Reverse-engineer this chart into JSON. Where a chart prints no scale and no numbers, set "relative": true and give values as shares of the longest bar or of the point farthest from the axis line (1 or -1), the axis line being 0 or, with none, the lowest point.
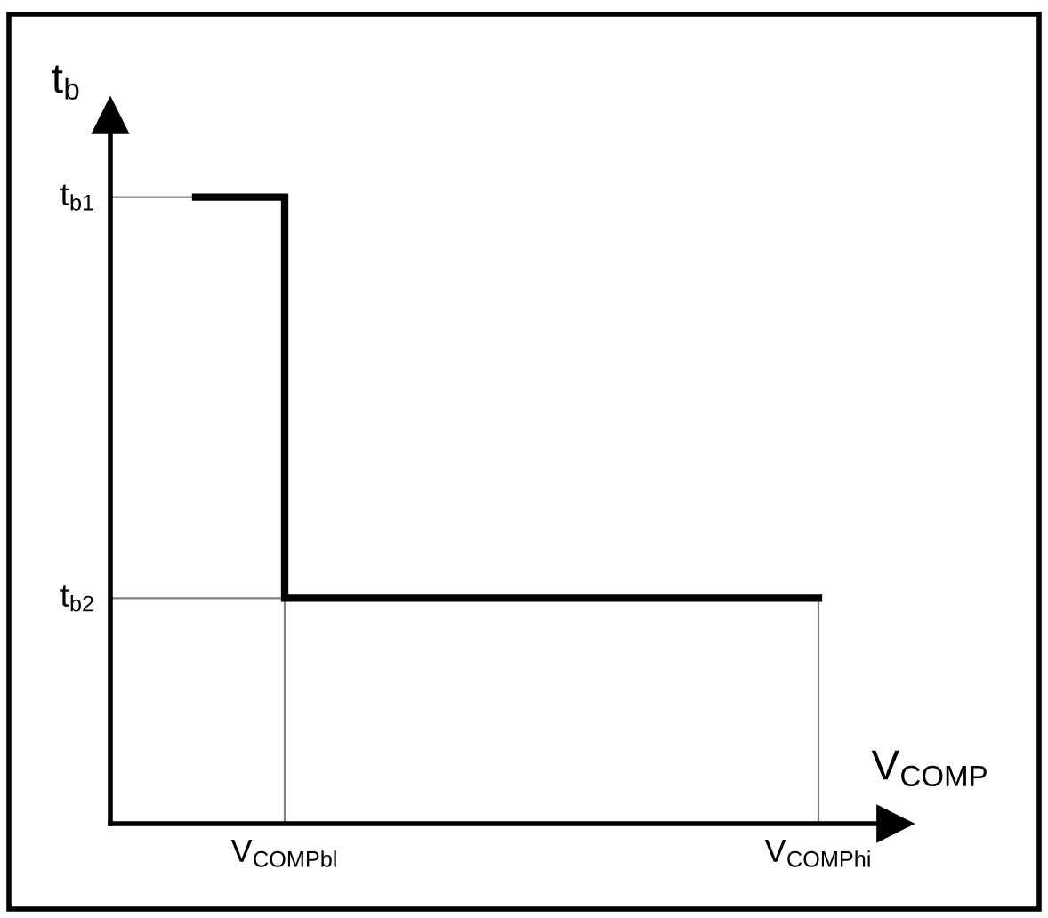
{
  "chart_data": {
    "type": "step",
    "relative": true,
    "xlabel": "V$_{COMP}$",
    "ylabel": "t$_{b}$",
    "categories": [
      null,
      "V$_{COMPbl}$",
      null,
      null,
      null,
      null,
      null,
      "V$_{COMPhi}$"
    ],
    "ref_lines": [
      {
        "axis": "y",
        "value": 1,
        "label": "t$_{b1}$",
        "color": "#808080"
      },
      {
        "axis": "y",
        "value": 0.36,
        "label": "t$_{b2}$",
        "color": "#808080"
      },
      {
        "axis": "x",
        "value": "V$_{COMPbl}$",
        "color": "#808080"
      },
      {
        "axis": "x",
        "value": "V$_{COMPhi}$",
        "color": "#808080"
      }
    ],
    "legend": false,
    "marker": "none",
    "line_style": "solid",
    "series": [
      {
        "color": "#000000",
        "values": [
          1,
          0.36,
          0.36,
          0.36,
          0.36,
          0.36,
          0.36,
          0.36
        ]
      }
    ]
  }
}
